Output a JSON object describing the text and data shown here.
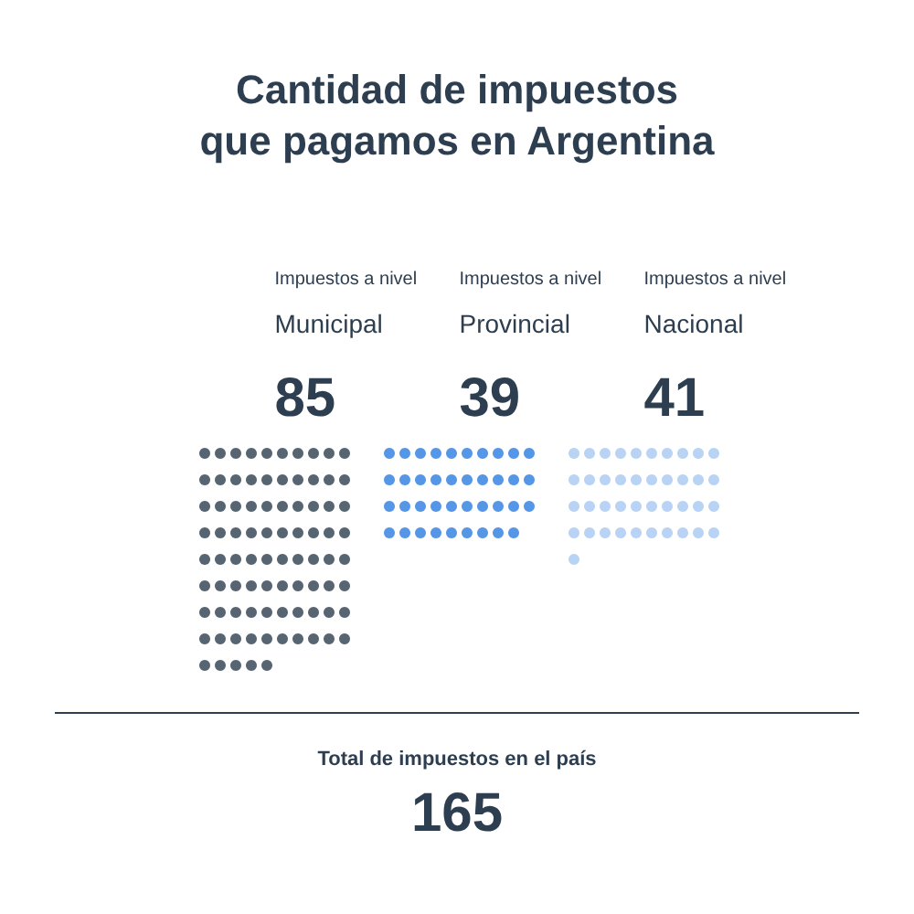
{
  "chart_data": {
    "type": "other",
    "title": "Cantidad de impuestos\nque pagamos en Argentina",
    "categories": [
      "Impuestos a nivel\nMunicipal",
      "Impuestos a nivel\nProvincial",
      "Impuestos a nivel\nNacional"
    ],
    "values": [
      85,
      39,
      41
    ],
    "colors": [
      "#2d3e50",
      "#2b7de0",
      "#a6c8f0"
    ],
    "data_labels": true,
    "annotations": [
      "Total de impuestos en el país",
      "165"
    ]
  }
}
